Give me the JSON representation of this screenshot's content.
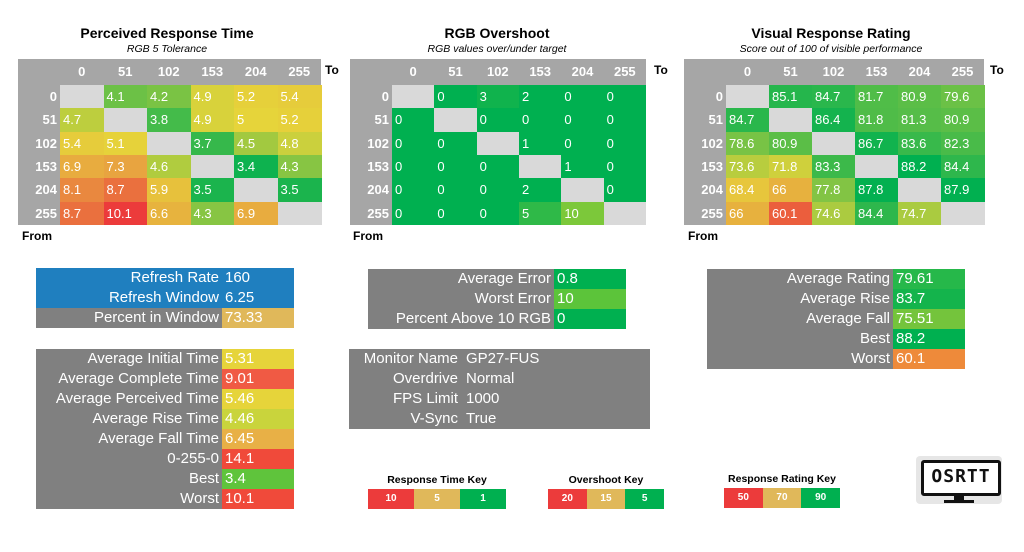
{
  "axis_values": [
    "0",
    "51",
    "102",
    "153",
    "204",
    "255"
  ],
  "to_label": "To",
  "from_label": "From",
  "colors": {
    "header_gray": "#a6a6a6",
    "diag_gray": "#d9d9d9",
    "panel_gray": "#808080",
    "blue": "#1f7fbf",
    "green": "#00b050"
  },
  "chart_data": [
    {
      "type": "heatmap",
      "title": "Perceived Response Time",
      "subtitle": "RGB 5 Tolerance",
      "xlabel": "To",
      "ylabel": "From",
      "x": [
        "0",
        "51",
        "102",
        "153",
        "204",
        "255"
      ],
      "y": [
        "0",
        "51",
        "102",
        "153",
        "204",
        "255"
      ],
      "values": [
        [
          null,
          "4.1",
          "4.2",
          "4.9",
          "5.2",
          "5.4"
        ],
        [
          "4.7",
          null,
          "3.8",
          "4.9",
          "5",
          "5.2"
        ],
        [
          "5.4",
          "5.1",
          null,
          "3.7",
          "4.5",
          "4.8"
        ],
        [
          "6.9",
          "7.3",
          "4.6",
          null,
          "3.4",
          "4.3"
        ],
        [
          "8.1",
          "8.7",
          "5.9",
          "3.5",
          null,
          "3.5"
        ],
        [
          "8.7",
          "10.1",
          "6.6",
          "4.3",
          "6.9",
          null
        ]
      ]
    },
    {
      "type": "heatmap",
      "title": "RGB Overshoot",
      "subtitle": "RGB values over/under target",
      "xlabel": "To",
      "ylabel": "From",
      "x": [
        "0",
        "51",
        "102",
        "153",
        "204",
        "255"
      ],
      "y": [
        "0",
        "51",
        "102",
        "153",
        "204",
        "255"
      ],
      "values": [
        [
          null,
          "0",
          "3",
          "2",
          "0",
          "0"
        ],
        [
          "0",
          null,
          "0",
          "0",
          "0",
          "0"
        ],
        [
          "0",
          "0",
          null,
          "1",
          "0",
          "0"
        ],
        [
          "0",
          "0",
          "0",
          null,
          "1",
          "0"
        ],
        [
          "0",
          "0",
          "0",
          "2",
          null,
          "0"
        ],
        [
          "0",
          "0",
          "0",
          "5",
          "10",
          null
        ]
      ]
    },
    {
      "type": "heatmap",
      "title": "Visual Response Rating",
      "subtitle": "Score out of 100 of visible performance",
      "xlabel": "To",
      "ylabel": "From",
      "x": [
        "0",
        "51",
        "102",
        "153",
        "204",
        "255"
      ],
      "y": [
        "0",
        "51",
        "102",
        "153",
        "204",
        "255"
      ],
      "values": [
        [
          null,
          "85.1",
          "84.7",
          "81.7",
          "80.9",
          "79.6"
        ],
        [
          "84.7",
          null,
          "86.4",
          "81.8",
          "81.3",
          "80.9"
        ],
        [
          "78.6",
          "80.9",
          null,
          "86.7",
          "83.6",
          "82.3"
        ],
        [
          "73.6",
          "71.8",
          "83.3",
          null,
          "88.2",
          "84.4"
        ],
        [
          "68.4",
          "66",
          "77.8",
          "87.8",
          null,
          "87.9"
        ],
        [
          "66",
          "60.1",
          "74.6",
          "84.4",
          "74.7",
          null
        ]
      ]
    }
  ],
  "refresh_box": [
    {
      "label": "Refresh Rate",
      "value": "160",
      "color": "#1f7fbf"
    },
    {
      "label": "Refresh Window",
      "value": "6.25",
      "color": "#1f7fbf"
    },
    {
      "label": "Percent in Window",
      "value": "73.33",
      "color": "#e0b85a"
    }
  ],
  "response_stats": [
    {
      "label": "Average Initial Time",
      "value": "5.31",
      "color": "#e6d43a"
    },
    {
      "label": "Average Complete Time",
      "value": "9.01",
      "color": "#f05a44"
    },
    {
      "label": "Average Perceived Time",
      "value": "5.46",
      "color": "#e6d43a"
    },
    {
      "label": "Average Rise Time",
      "value": "4.46",
      "color": "#c9d43c"
    },
    {
      "label": "Average Fall Time",
      "value": "6.45",
      "color": "#e8b046"
    },
    {
      "label": "0-255-0",
      "value": "14.1",
      "color": "#f04a3a"
    },
    {
      "label": "Best",
      "value": "3.4",
      "color": "#5fc43c"
    },
    {
      "label": "Worst",
      "value": "10.1",
      "color": "#f04a3a"
    }
  ],
  "overshoot_stats": [
    {
      "label": "Average Error",
      "value": "0.8",
      "color": "#00b050"
    },
    {
      "label": "Worst Error",
      "value": "10",
      "color": "#5cc43a"
    },
    {
      "label": "Percent Above 10 RGB",
      "value": "0",
      "color": "#00b050"
    }
  ],
  "monitor_info": [
    {
      "label": "Monitor Name",
      "value": "GP27-FUS"
    },
    {
      "label": "Overdrive",
      "value": "Normal"
    },
    {
      "label": "FPS Limit",
      "value": "1000"
    },
    {
      "label": "V-Sync",
      "value": "True"
    }
  ],
  "rating_stats": [
    {
      "label": "Average Rating",
      "value": "79.61",
      "color": "#26b84a"
    },
    {
      "label": "Average Rise",
      "value": "83.7",
      "color": "#14b44c"
    },
    {
      "label": "Average Fall",
      "value": "75.51",
      "color": "#74c43c"
    },
    {
      "label": "Best",
      "value": "88.2",
      "color": "#00b050"
    },
    {
      "label": "Worst",
      "value": "60.1",
      "color": "#ee8a3a"
    }
  ],
  "keys": [
    {
      "title": "Response Time Key",
      "items": [
        {
          "label": "10",
          "color": "#ec3b3b"
        },
        {
          "label": "5",
          "color": "#e0b85a"
        },
        {
          "label": "1",
          "color": "#00b050"
        }
      ]
    },
    {
      "title": "Overshoot Key",
      "items": [
        {
          "label": "20",
          "color": "#ec3b3b"
        },
        {
          "label": "15",
          "color": "#e0b85a"
        },
        {
          "label": "5",
          "color": "#00b050"
        }
      ]
    },
    {
      "title": "Response Rating Key",
      "items": [
        {
          "label": "50",
          "color": "#ec3b3b"
        },
        {
          "label": "70",
          "color": "#e0b85a"
        },
        {
          "label": "90",
          "color": "#00b050"
        }
      ]
    }
  ],
  "logo_text": "OSRTT"
}
